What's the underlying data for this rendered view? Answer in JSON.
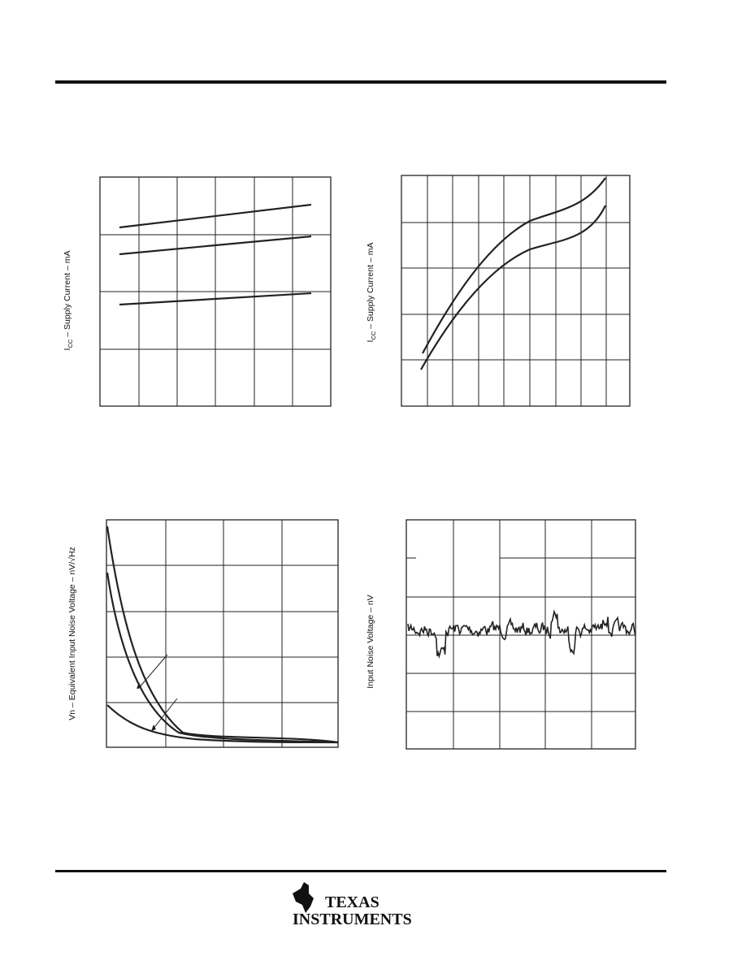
{
  "charts": [
    {
      "ylabel": {
        "symbol": "I",
        "subscript": "CC",
        "text": " – Supply Current – mA"
      }
    },
    {
      "ylabel": {
        "symbol": "I",
        "subscript": "CC",
        "text": " – Supply Current – mA"
      }
    },
    {
      "ylabel": {
        "text": "Vn – Equivalent Input Noise Voltage – nV/√Hz"
      }
    },
    {
      "ylabel": {
        "text": "Input Noise Voltage – nV"
      }
    }
  ],
  "footer": {
    "logo_line1": "TEXAS",
    "logo_line2": "INSTRUMENTS"
  }
}
